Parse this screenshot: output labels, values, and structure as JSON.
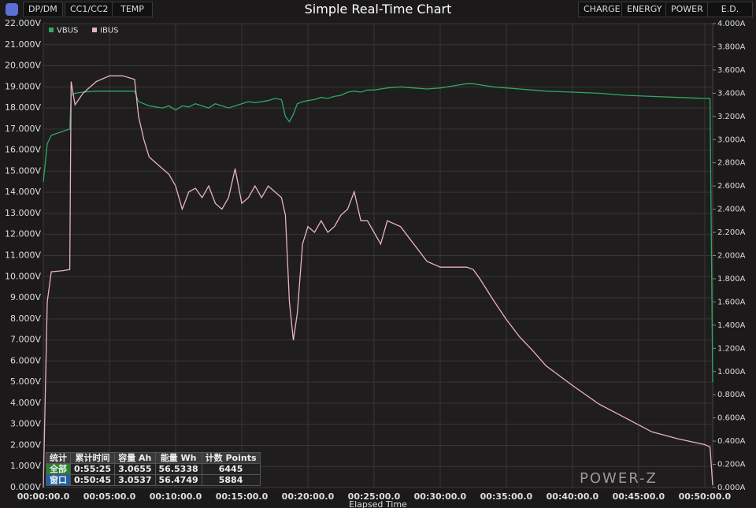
{
  "toolbar": {
    "left": [
      "DP/DM",
      "CC1/CC2",
      "TEMP"
    ],
    "right": [
      "CHARGE",
      "ENERGY",
      "POWER",
      "E.D."
    ]
  },
  "stats": {
    "rows": [
      [
        "统计",
        "累计时间",
        "容量 Ah",
        "能量 Wh",
        "计数 Points"
      ],
      [
        "全部",
        "0:55:25",
        "3.0655",
        "56.5338",
        "6445"
      ],
      [
        "窗口",
        "0:50:45",
        "3.0537",
        "56.4749",
        "5884"
      ]
    ]
  },
  "logo": "POWER-Z",
  "chart_data": {
    "type": "line",
    "title": "Simple Real-Time Chart",
    "x_label": "Elapsed Time",
    "x": [
      0,
      0.3,
      0.6,
      1.5,
      2.0,
      2.1,
      2.4,
      3,
      4,
      5,
      6,
      6.9,
      7.2,
      7.6,
      8,
      8.5,
      9,
      9.5,
      10,
      10.5,
      11,
      11.5,
      12,
      12.5,
      13,
      13.5,
      14,
      14.5,
      15,
      15.5,
      16,
      16.5,
      17,
      17.5,
      18,
      18.3,
      18.6,
      18.9,
      19.2,
      19.6,
      20,
      20.5,
      21,
      21.5,
      22,
      22.5,
      23,
      23.5,
      24,
      24.5,
      25,
      25.5,
      26,
      27,
      28,
      29,
      30,
      31,
      32,
      32.5,
      33,
      34,
      35,
      36,
      37,
      38,
      40,
      42,
      44,
      46,
      48,
      50,
      50.4,
      50.6
    ],
    "series": [
      {
        "name": "VBUS",
        "color": "#2fa866",
        "axis": "y",
        "values": [
          14.5,
          16.3,
          16.7,
          16.9,
          17.0,
          18.6,
          18.7,
          18.75,
          18.8,
          18.8,
          18.8,
          18.8,
          18.3,
          18.2,
          18.1,
          18.05,
          18.0,
          18.1,
          17.9,
          18.1,
          18.05,
          18.2,
          18.1,
          18.0,
          18.2,
          18.1,
          18.0,
          18.1,
          18.2,
          18.3,
          18.25,
          18.3,
          18.35,
          18.45,
          18.4,
          17.6,
          17.35,
          17.7,
          18.2,
          18.3,
          18.35,
          18.4,
          18.5,
          18.45,
          18.55,
          18.6,
          18.75,
          18.8,
          18.75,
          18.85,
          18.85,
          18.9,
          18.95,
          19.0,
          18.95,
          18.9,
          18.95,
          19.05,
          19.15,
          19.15,
          19.1,
          19.0,
          18.95,
          18.9,
          18.85,
          18.8,
          18.75,
          18.7,
          18.6,
          18.55,
          18.5,
          18.45,
          18.45,
          5.0
        ]
      },
      {
        "name": "IBUS",
        "color": "#e9b3c0",
        "axis": "y2",
        "values": [
          0,
          1.6,
          1.86,
          1.87,
          1.88,
          3.5,
          3.3,
          3.4,
          3.5,
          3.55,
          3.55,
          3.52,
          3.2,
          3.0,
          2.85,
          2.8,
          2.75,
          2.7,
          2.6,
          2.4,
          2.55,
          2.58,
          2.5,
          2.6,
          2.45,
          2.4,
          2.5,
          2.75,
          2.45,
          2.5,
          2.6,
          2.5,
          2.6,
          2.55,
          2.5,
          2.35,
          1.6,
          1.27,
          1.5,
          2.1,
          2.25,
          2.2,
          2.3,
          2.2,
          2.25,
          2.35,
          2.4,
          2.55,
          2.3,
          2.3,
          2.2,
          2.1,
          2.3,
          2.25,
          2.1,
          1.95,
          1.9,
          1.9,
          1.9,
          1.88,
          1.8,
          1.62,
          1.45,
          1.3,
          1.18,
          1.05,
          0.88,
          0.72,
          0.6,
          0.48,
          0.42,
          0.37,
          0.35,
          0.02
        ]
      }
    ],
    "xlim": [
      0,
      50.6
    ],
    "xticks": [
      {
        "value": 0,
        "label": "00:00:00.0"
      },
      {
        "value": 5,
        "label": "00:05:00.0"
      },
      {
        "value": 10,
        "label": "00:10:00.0"
      },
      {
        "value": 15,
        "label": "00:15:00.0"
      },
      {
        "value": 20,
        "label": "00:20:00.0"
      },
      {
        "value": 25,
        "label": "00:25:00.0"
      },
      {
        "value": 30,
        "label": "00:30:00.0"
      },
      {
        "value": 35,
        "label": "00:35:00.0"
      },
      {
        "value": 40,
        "label": "00:40:00.0"
      },
      {
        "value": 45,
        "label": "00:45:00.0"
      },
      {
        "value": 50,
        "label": "00:50:00.0"
      }
    ],
    "ylim": [
      0,
      22
    ],
    "yticks": [
      {
        "value": 0,
        "label": "0.000V"
      },
      {
        "value": 1,
        "label": "1.000V"
      },
      {
        "value": 2,
        "label": "2.000V"
      },
      {
        "value": 3,
        "label": "3.000V"
      },
      {
        "value": 4,
        "label": "4.000V"
      },
      {
        "value": 5,
        "label": "5.000V"
      },
      {
        "value": 6,
        "label": "6.000V"
      },
      {
        "value": 7,
        "label": "7.000V"
      },
      {
        "value": 8,
        "label": "8.000V"
      },
      {
        "value": 9,
        "label": "9.000V"
      },
      {
        "value": 10,
        "label": "10.000V"
      },
      {
        "value": 11,
        "label": "11.000V"
      },
      {
        "value": 12,
        "label": "12.000V"
      },
      {
        "value": 13,
        "label": "13.000V"
      },
      {
        "value": 14,
        "label": "14.000V"
      },
      {
        "value": 15,
        "label": "15.000V"
      },
      {
        "value": 16,
        "label": "16.000V"
      },
      {
        "value": 17,
        "label": "17.000V"
      },
      {
        "value": 18,
        "label": "18.000V"
      },
      {
        "value": 19,
        "label": "19.000V"
      },
      {
        "value": 20,
        "label": "20.000V"
      },
      {
        "value": 21,
        "label": "21.000V"
      },
      {
        "value": 22,
        "label": "22.000V"
      }
    ],
    "y2lim": [
      0,
      4
    ],
    "y2ticks": [
      {
        "value": 0,
        "label": "0.000A"
      },
      {
        "value": 0.2,
        "label": "0.200A"
      },
      {
        "value": 0.4,
        "label": "0.400A"
      },
      {
        "value": 0.6,
        "label": "0.600A"
      },
      {
        "value": 0.8,
        "label": "0.800A"
      },
      {
        "value": 1.0,
        "label": "1.000A"
      },
      {
        "value": 1.2,
        "label": "1.200A"
      },
      {
        "value": 1.4,
        "label": "1.400A"
      },
      {
        "value": 1.6,
        "label": "1.600A"
      },
      {
        "value": 1.8,
        "label": "1.800A"
      },
      {
        "value": 2.0,
        "label": "2.000A"
      },
      {
        "value": 2.2,
        "label": "2.200A"
      },
      {
        "value": 2.4,
        "label": "2.400A"
      },
      {
        "value": 2.6,
        "label": "2.600A"
      },
      {
        "value": 2.8,
        "label": "2.800A"
      },
      {
        "value": 3.0,
        "label": "3.000A"
      },
      {
        "value": 3.2,
        "label": "3.200A"
      },
      {
        "value": 3.4,
        "label": "3.400A"
      },
      {
        "value": 3.6,
        "label": "3.600A"
      },
      {
        "value": 3.8,
        "label": "3.800A"
      },
      {
        "value": 4.0,
        "label": "4.000A"
      }
    ],
    "grid": true,
    "legend": "top-left"
  }
}
